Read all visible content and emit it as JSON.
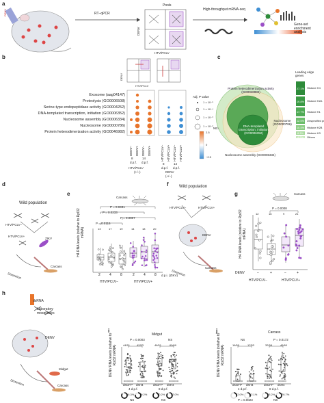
{
  "panel_a": {
    "label": "a",
    "rt_qpcr": "RT–qPCR",
    "pools": "Pools",
    "denv": "DENV",
    "htv_pclv": "HTV/PCLV",
    "mrna_seq": "High-throughput mRNA-seq",
    "gsea": "Gene-set enrichment analysis"
  },
  "panel_b": {
    "label": "b",
    "denv_axis": "DENV",
    "htv_axis": "HTV/PCLV",
    "terms": [
      "Exosome (aag04147)",
      "Proteolysis (GO0006508)",
      "Serine-type endopeptidase activity (GO0004252)",
      "DNA-templated transcription, initiation (GO0006352)",
      "Nucleosome assembly (GO0006334)",
      "Nucleosome (GO0000786)",
      "Protein heterodimerization activity (GO0046982)"
    ],
    "left_cols": [
      "DENV−",
      "DENV+",
      "DENV−",
      "DENV+"
    ],
    "right_cols": [
      "HTV/PCLV−",
      "HTV/PCLV+",
      "HTV/PCLV−",
      "HTV/PCLV+"
    ],
    "group_8": "8",
    "group_14": "14",
    "dpf": "d.p.f.",
    "left_group": "HTV/PCLV",
    "left_sub": "(+/−)",
    "right_group": "DENV",
    "right_sub": "(+/−)",
    "pvalue_title": "Adj. P value",
    "pvalue_levels": [
      "1 × 10⁻⁵",
      "1 × 10⁻⁴",
      "1 × 10⁻³",
      "1 × 10⁻²"
    ],
    "nes_title": "NES",
    "nes_ticks": [
      "2.5",
      "0",
      "−2.5"
    ],
    "colors": {
      "pos": "#e8742a",
      "neg": "#3f8fd4"
    }
  },
  "panel_c": {
    "label": "c",
    "sets": [
      "Protein heterodimerization activity (GO0046982)",
      "DNA-templated transcription, initiation (GO0006352)",
      "Nucleosome assembly (GO0006334)",
      "Nucleosome (GO0000786)"
    ],
    "leading_edge_title": "Leading edge genes",
    "leading_edge": [
      {
        "pct": "27.1%",
        "name": "Histone H4",
        "color": "#2e8b3a"
      },
      {
        "pct": "19.8%",
        "name": "Histone H2A",
        "color": "#3a9a44"
      },
      {
        "pct": "17.7%",
        "name": "Histone H1",
        "color": "#4faa55"
      },
      {
        "pct": "12.5%",
        "name": "Unspecified product",
        "color": "#6cbd6b"
      },
      {
        "pct": "10.4%",
        "name": "Histone H2B",
        "color": "#8ccc84"
      },
      {
        "pct": "8.3%",
        "name": "Histone H3",
        "color": "#a8d99d"
      },
      {
        "pct": "4.2%",
        "name": "Others",
        "color": "#c7e8bb"
      }
    ]
  },
  "panel_d": {
    "label": "d",
    "wild_population": "Wild population",
    "htv_neg": "HTV/PCLV−",
    "htv_pos": "HTV/PCLV+",
    "zikv": "ZIKV",
    "carcass": "Carcass",
    "dissection": "Dissection"
  },
  "panel_e": {
    "label": "e",
    "carcass": "Carcass",
    "ylabel": "H4 RNA levels (relative to Rpl32 mRNA)",
    "pvalues": [
      "P = 0.0491",
      "P = 0.0233",
      "P = 0.0807",
      "P = 0.0116"
    ],
    "ns": [
      "13",
      "17",
      "19",
      "14",
      "18",
      "20"
    ],
    "groups": [
      "HTV/PCLV−",
      "HTV/PCLV+"
    ],
    "dpi_ticks": [
      "2",
      "4",
      "8",
      "2",
      "4",
      "8"
    ],
    "dpi_label": "d.p.i. (ZIKV)",
    "colors": {
      "neg": "#ffffff",
      "pos": "#9b4fc7"
    }
  },
  "panel_f": {
    "label": "f",
    "wild_population": "Wild population",
    "htv_neg": "HTV/PCLV−",
    "htv_pos": "HTV/PCLV+",
    "denv": "DENV",
    "carcass": "Carcass",
    "dissection": "Dissection"
  },
  "panel_g": {
    "label": "g",
    "carcass": "Carcass",
    "pvalue": "P = 0.0008",
    "ns": [
      "12",
      "16",
      "9",
      "21"
    ],
    "ylabel": "H4 RNA levels (relative to Rpl32 mRNA)",
    "denv_row": "DENV",
    "ticks": [
      "−",
      "+",
      "−",
      "+"
    ],
    "groups": [
      "HTV/PCLV−",
      "HTV/PCLV+"
    ]
  },
  "panel_h": {
    "label": "h",
    "dsrna": "dsRNA",
    "lab_mosquitoes": "Laboratory mosquitoes",
    "denv": "DENV",
    "dissection": "Dissection",
    "carcass": "Carcass",
    "midgut": "Midgut"
  },
  "panel_i": {
    "label": "i",
    "title": "Midgut",
    "p1": "P = 0.0003",
    "ns": "NS",
    "ratios": [
      "44/51",
      "42/53",
      "46/51",
      "60/69"
    ],
    "ylabel": "DENV RNA levels (relative to Rpl32 mRNA)",
    "xticks": [
      "dsGFP",
      "dsH4",
      "dsGFP",
      "dsH4"
    ],
    "days": [
      "4 d.p.f.",
      "8 d.p.f."
    ],
    "donut_pcts": [
      "86.3%",
      "79.2%",
      "90.2%",
      "87.0%"
    ],
    "donut_ns": [
      "NS",
      "NS"
    ]
  },
  "panel_j": {
    "label": "j",
    "title": "Carcass",
    "ns": "NS",
    "p1": "P = 0.0172",
    "ratios": [
      "16/50",
      "17/53",
      "32/58",
      "46/60"
    ],
    "ylabel": "DENV RNA levels (relative to Rpl32 mRNA)",
    "xticks": [
      "dsGFP",
      "dsH4",
      "dsGFP",
      "dsH4"
    ],
    "days": [
      "4 d.p.f.",
      "8 d.p.f."
    ],
    "donut_pcts": [
      "32.0%",
      "32.1%",
      "55.2%",
      "76.7%"
    ],
    "donut_p": "P = 0.0023",
    "donut_ns": "NS"
  }
}
